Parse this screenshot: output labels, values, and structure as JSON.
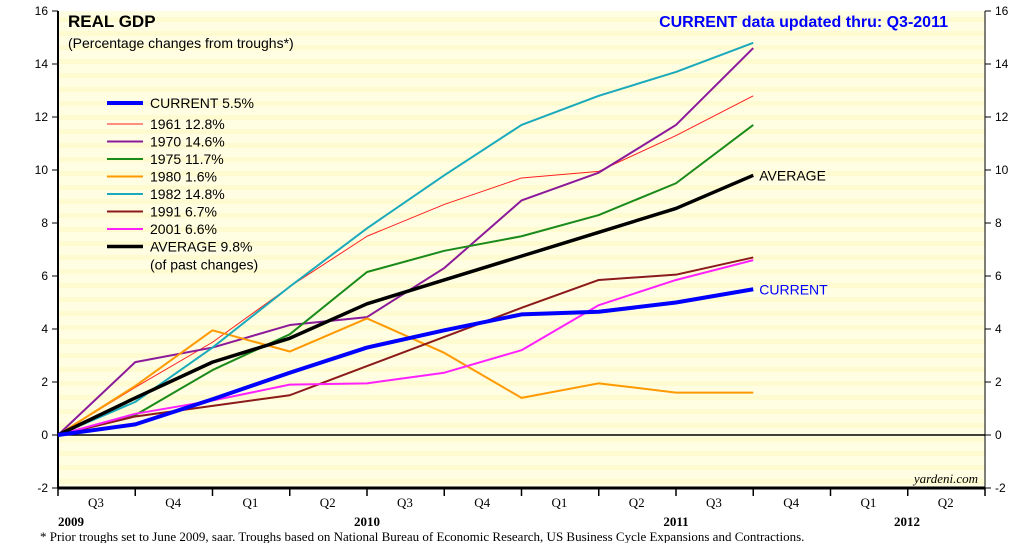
{
  "chart_data": {
    "type": "line",
    "title": "REAL GDP",
    "subtitle": "(Percentage changes from troughs*)",
    "update_note": "CURRENT data updated thru: Q3-2011",
    "source": "yardeni.com",
    "footnote": "*  Prior troughs set to June 2009, saar. Troughs based on National Bureau of Economic Research, US Business Cycle Expansions and Contractions.",
    "ylim": [
      -2,
      16
    ],
    "yticks": [
      "-2",
      "0",
      "2",
      "4",
      "6",
      "8",
      "10",
      "12",
      "14",
      "16"
    ],
    "quarter_labels": [
      "Q3",
      "Q4",
      "Q1",
      "Q2",
      "Q3",
      "Q4",
      "Q1",
      "Q2",
      "Q3",
      "Q4",
      "Q1",
      "Q2"
    ],
    "year_labels": [
      "2009",
      "2010",
      "2011",
      "2012"
    ],
    "x": [
      0,
      1,
      2,
      3,
      4,
      5,
      6,
      7,
      8,
      9
    ],
    "grid": false,
    "legend_placement": "top-left",
    "series": [
      {
        "name": "CURRENT 5.5%",
        "color": "#0000ff",
        "width": 4,
        "values": [
          0,
          0.4,
          1.35,
          2.35,
          3.3,
          3.95,
          4.55,
          4.65,
          5.0,
          5.5
        ],
        "end_label": "CURRENT"
      },
      {
        "name": "1961 12.8%",
        "color": "#ff2020",
        "width": 1,
        "values": [
          0,
          1.8,
          3.5,
          5.6,
          7.5,
          8.7,
          9.7,
          9.95,
          11.3,
          12.8
        ]
      },
      {
        "name": "1970 14.6%",
        "color": "#8b1a9b",
        "width": 2,
        "values": [
          0,
          2.75,
          3.3,
          4.15,
          4.45,
          6.3,
          8.85,
          9.9,
          11.7,
          14.6
        ]
      },
      {
        "name": "1975 11.7%",
        "color": "#1a8a1a",
        "width": 2,
        "values": [
          0,
          0.75,
          2.45,
          3.8,
          6.15,
          6.95,
          7.5,
          8.3,
          9.5,
          11.7
        ]
      },
      {
        "name": "1980 1.6%",
        "color": "#ff9900",
        "width": 2,
        "values": [
          0,
          1.85,
          3.95,
          3.15,
          4.4,
          3.1,
          1.4,
          1.95,
          1.6,
          1.6
        ]
      },
      {
        "name": "1982 14.8%",
        "color": "#1aaabb",
        "width": 2,
        "values": [
          0,
          1.25,
          3.3,
          5.6,
          7.8,
          9.8,
          11.7,
          12.8,
          13.7,
          14.8
        ]
      },
      {
        "name": "1991 6.7%",
        "color": "#8b1a1a",
        "width": 2,
        "values": [
          0,
          0.7,
          1.1,
          1.5,
          2.6,
          3.7,
          4.8,
          5.85,
          6.05,
          6.7
        ]
      },
      {
        "name": "2001 6.6%",
        "color": "#ff22ff",
        "width": 2,
        "values": [
          0,
          0.8,
          1.3,
          1.9,
          1.95,
          2.35,
          3.2,
          4.9,
          5.85,
          6.6
        ]
      },
      {
        "name": "AVERAGE 9.8%",
        "name2": "(of past changes)",
        "color": "#000000",
        "width": 3.5,
        "values": [
          0,
          1.4,
          2.75,
          3.65,
          4.95,
          5.85,
          6.75,
          7.65,
          8.55,
          9.8
        ],
        "end_label": "AVERAGE"
      }
    ]
  }
}
